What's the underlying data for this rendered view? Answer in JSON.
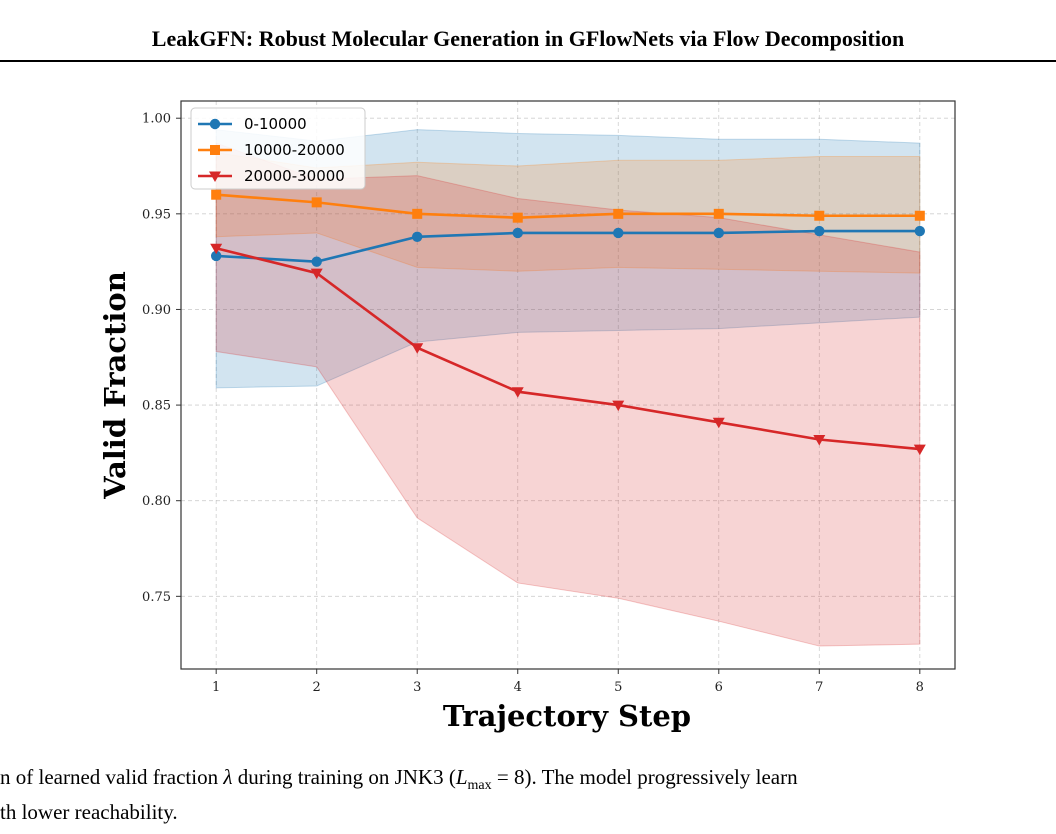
{
  "page": {
    "header": "LeakGFN: Robust Molecular Generation in GFlowNets via Flow Decomposition",
    "caption_line1_a": "n of learned valid fraction ",
    "caption_lambda": "λ",
    "caption_line1_b": " during training on JNK3 (",
    "caption_L": "L",
    "caption_max": "max",
    "caption_line1_c": " = 8). The model progressively learn",
    "caption_line2": "th lower reachability."
  },
  "colors": {
    "blue": "#1f77b4",
    "orange": "#ff7f0e",
    "red": "#d62728"
  },
  "chart_data": {
    "type": "line",
    "xlabel": "Trajectory Step",
    "ylabel": "Valid Fraction",
    "x": [
      1,
      2,
      3,
      4,
      5,
      6,
      7,
      8
    ],
    "xticks": [
      "1",
      "2",
      "3",
      "4",
      "5",
      "6",
      "7",
      "8"
    ],
    "yticks": [
      "0.75",
      "0.80",
      "0.85",
      "0.90",
      "0.95",
      "1.00"
    ],
    "xlim": [
      0.65,
      8.35
    ],
    "ylim": [
      0.712,
      1.009
    ],
    "grid": true,
    "legend_position": "top-left",
    "series": [
      {
        "name": "0-10000",
        "color": "#1f77b4",
        "marker": "circle",
        "values": [
          0.928,
          0.925,
          0.938,
          0.94,
          0.94,
          0.94,
          0.941,
          0.941
        ],
        "upper": [
          0.994,
          0.988,
          0.994,
          0.992,
          0.991,
          0.989,
          0.989,
          0.987
        ],
        "lower": [
          0.859,
          0.86,
          0.883,
          0.888,
          0.889,
          0.89,
          0.893,
          0.896
        ]
      },
      {
        "name": "10000-20000",
        "color": "#ff7f0e",
        "marker": "square",
        "values": [
          0.96,
          0.956,
          0.95,
          0.948,
          0.95,
          0.95,
          0.949,
          0.949
        ],
        "upper": [
          0.982,
          0.974,
          0.977,
          0.975,
          0.978,
          0.978,
          0.98,
          0.98
        ],
        "lower": [
          0.938,
          0.94,
          0.922,
          0.92,
          0.922,
          0.921,
          0.92,
          0.919
        ]
      },
      {
        "name": "20000-30000",
        "color": "#d62728",
        "marker": "triangle-down",
        "values": [
          0.932,
          0.919,
          0.88,
          0.857,
          0.85,
          0.841,
          0.832,
          0.827
        ],
        "upper": [
          0.987,
          0.968,
          0.97,
          0.958,
          0.952,
          0.948,
          0.939,
          0.93
        ],
        "lower": [
          0.878,
          0.87,
          0.791,
          0.757,
          0.749,
          0.737,
          0.724,
          0.725
        ]
      }
    ]
  }
}
